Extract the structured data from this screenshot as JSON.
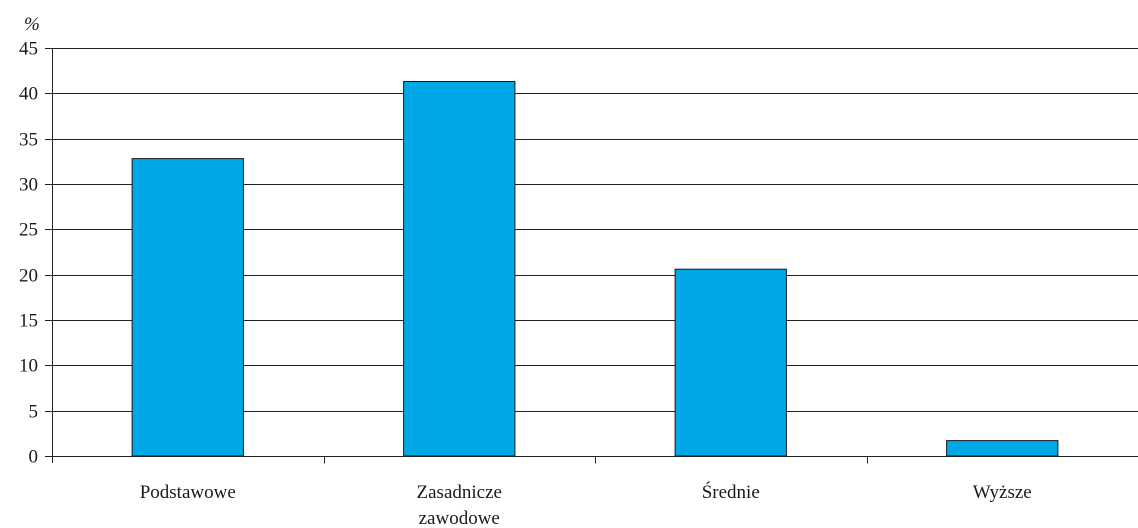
{
  "chart_data": {
    "type": "bar",
    "categories": [
      [
        "Podstawowe"
      ],
      [
        "Zasadnicze",
        "zawodowe"
      ],
      [
        "Średnie"
      ],
      [
        "Wyższe"
      ]
    ],
    "values": [
      32.8,
      41.3,
      20.6,
      1.7
    ],
    "ylabel": "%",
    "ylim": [
      0,
      45
    ],
    "yticks": [
      0,
      5,
      10,
      15,
      20,
      25,
      30,
      35,
      40,
      45
    ],
    "grid": true,
    "colors": {
      "bar": "#00a8e8",
      "bar_stroke": "#1a1a1a",
      "grid": "#222222"
    }
  }
}
